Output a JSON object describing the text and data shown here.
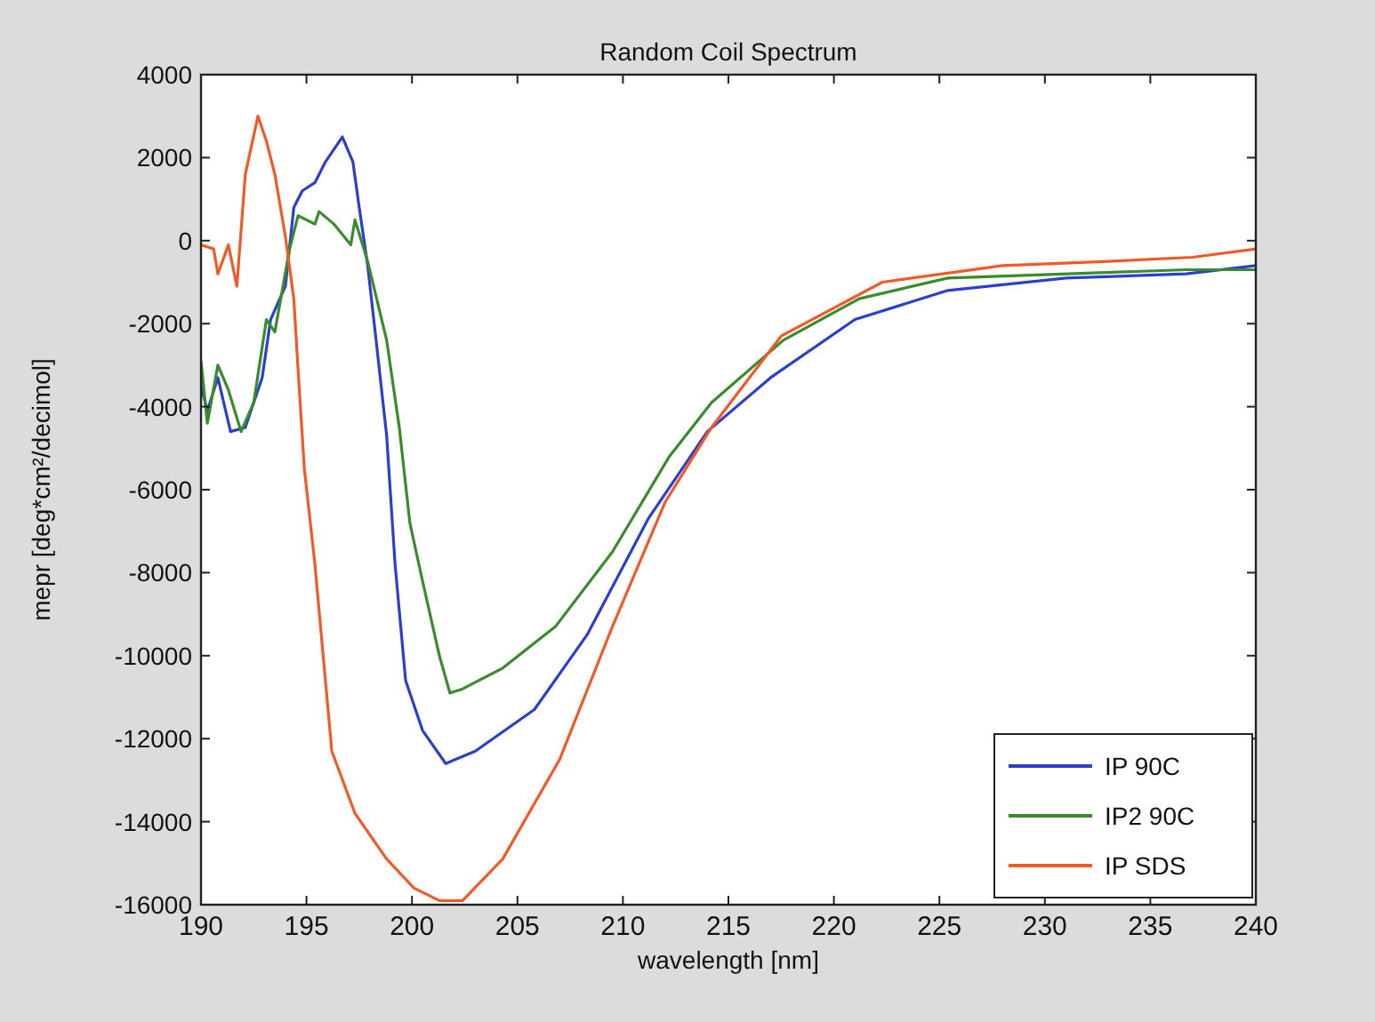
{
  "chart_data": {
    "type": "line",
    "title": "Random Coil Spectrum",
    "xlabel": "wavelength [nm]",
    "ylabel": "mepr [deg*cm²/decimol]",
    "xlim": [
      190,
      240
    ],
    "xticks": [
      190,
      195,
      200,
      205,
      210,
      215,
      220,
      225,
      230,
      235,
      240
    ],
    "ylim": [
      -16000,
      4000
    ],
    "yticks": [
      -16000,
      -14000,
      -12000,
      -10000,
      -8000,
      -6000,
      -4000,
      -2000,
      0,
      2000,
      4000
    ],
    "grid": false,
    "legend": "bottom right",
    "line_style": "solid",
    "marker": "none",
    "series": [
      {
        "name": "IP 90C",
        "color": "#2b3fcc",
        "x": [
          190,
          190.3,
          190.8,
          191.4,
          192.1,
          192.9,
          193.3,
          194,
          194.4,
          194.8,
          195.4,
          195.9,
          196.7,
          197.2,
          197.5,
          197.9,
          198.3,
          198.8,
          199.2,
          199.7,
          200.5,
          201.6,
          203,
          205.8,
          208.3,
          211.2,
          214,
          217,
          221,
          225.4,
          231,
          236.7,
          240
        ],
        "values": [
          -3500,
          -4100,
          -3300,
          -4600,
          -4500,
          -3300,
          -1900,
          -1100,
          800,
          1200,
          1400,
          1900,
          2500,
          1900,
          800,
          -600,
          -2400,
          -4700,
          -7800,
          -10600,
          -11800,
          -12600,
          -12300,
          -11300,
          -9500,
          -6700,
          -4600,
          -3300,
          -1900,
          -1200,
          -900,
          -800,
          -600
        ]
      },
      {
        "name": "IP2 90C",
        "color": "#3a8a2e",
        "x": [
          190,
          190.3,
          190.8,
          191.3,
          191.9,
          192.5,
          193.1,
          193.5,
          194.2,
          194.6,
          195.4,
          195.6,
          196.3,
          197.1,
          197.3,
          197.9,
          198.8,
          199.4,
          199.9,
          200.5,
          201.3,
          201.8,
          202.4,
          204.3,
          206.8,
          209.5,
          212.2,
          214.2,
          217.6,
          221.2,
          225.4,
          231.1,
          236.7,
          240
        ],
        "values": [
          -2900,
          -4400,
          -3000,
          -3600,
          -4600,
          -3900,
          -1900,
          -2200,
          -200,
          600,
          400,
          700,
          400,
          -100,
          500,
          -500,
          -2400,
          -4500,
          -6800,
          -8200,
          -10000,
          -10900,
          -10800,
          -10300,
          -9300,
          -7500,
          -5200,
          -3900,
          -2400,
          -1400,
          -900,
          -800,
          -700,
          -700
        ]
      },
      {
        "name": "IP SDS",
        "color": "#f05a28",
        "x": [
          190,
          190.6,
          190.8,
          191.3,
          191.7,
          192.1,
          192.7,
          193.1,
          193.5,
          194,
          194.4,
          194.6,
          194.9,
          195.4,
          196.2,
          197.3,
          198.8,
          200.1,
          201.3,
          202.4,
          204.3,
          207,
          209.5,
          212,
          214.2,
          217.5,
          222.3,
          228,
          233,
          237,
          240
        ],
        "values": [
          -100,
          -200,
          -800,
          -100,
          -1100,
          1600,
          3000,
          2400,
          1600,
          100,
          -1400,
          -3100,
          -5500,
          -7800,
          -12300,
          -13800,
          -14900,
          -15600,
          -15900,
          -15900,
          -14900,
          -12500,
          -9300,
          -6300,
          -4500,
          -2300,
          -1000,
          -600,
          -500,
          -400,
          -200
        ]
      }
    ]
  }
}
